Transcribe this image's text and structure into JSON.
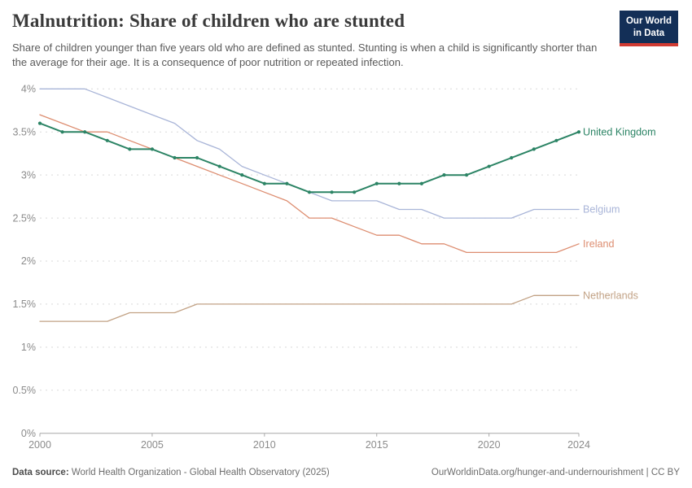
{
  "header": {
    "title": "Malnutrition: Share of children who are stunted",
    "subtitle": "Share of children younger than five years old who are defined as stunted. Stunting is when a child is significantly shorter than the average for their age. It is a consequence of poor nutrition or repeated infection.",
    "logo": {
      "line1": "Our World",
      "line2": "in Data",
      "bg_color": "#132f57",
      "accent_color": "#d13b33"
    }
  },
  "chart_data": {
    "type": "line",
    "title": "Malnutrition: Share of children who are stunted",
    "unit": "%",
    "x": [
      2000,
      2001,
      2002,
      2003,
      2004,
      2005,
      2006,
      2007,
      2008,
      2009,
      2010,
      2011,
      2012,
      2013,
      2014,
      2015,
      2016,
      2017,
      2018,
      2019,
      2020,
      2021,
      2022,
      2023,
      2024
    ],
    "series": [
      {
        "name": "Belgium",
        "color": "#a9b5d8",
        "line_width": 1.3,
        "markers": false,
        "values": [
          4.0,
          4.0,
          4.0,
          3.9,
          3.8,
          3.7,
          3.6,
          3.4,
          3.3,
          3.1,
          3.0,
          2.9,
          2.8,
          2.7,
          2.7,
          2.7,
          2.6,
          2.6,
          2.5,
          2.5,
          2.5,
          2.5,
          2.6,
          2.6,
          2.6
        ]
      },
      {
        "name": "Ireland",
        "color": "#dd8d70",
        "line_width": 1.3,
        "markers": false,
        "values": [
          3.7,
          3.6,
          3.5,
          3.5,
          3.4,
          3.3,
          3.2,
          3.1,
          3.0,
          2.9,
          2.8,
          2.7,
          2.5,
          2.5,
          2.4,
          2.3,
          2.3,
          2.2,
          2.2,
          2.1,
          2.1,
          2.1,
          2.1,
          2.1,
          2.2
        ]
      },
      {
        "name": "Netherlands",
        "color": "#c2a285",
        "line_width": 1.3,
        "markers": false,
        "values": [
          1.3,
          1.3,
          1.3,
          1.3,
          1.4,
          1.4,
          1.4,
          1.5,
          1.5,
          1.5,
          1.5,
          1.5,
          1.5,
          1.5,
          1.5,
          1.5,
          1.5,
          1.5,
          1.5,
          1.5,
          1.5,
          1.5,
          1.6,
          1.6,
          1.6
        ]
      },
      {
        "name": "United Kingdom",
        "color": "#2c8465",
        "line_width": 2.0,
        "markers": true,
        "values": [
          3.6,
          3.5,
          3.5,
          3.4,
          3.3,
          3.3,
          3.2,
          3.2,
          3.1,
          3.0,
          2.9,
          2.9,
          2.8,
          2.8,
          2.8,
          2.9,
          2.9,
          2.9,
          3.0,
          3.0,
          3.1,
          3.2,
          3.3,
          3.4,
          3.5
        ]
      }
    ],
    "ylim": [
      0,
      4
    ],
    "yticks": [
      {
        "value": 0,
        "label": "0%"
      },
      {
        "value": 0.5,
        "label": "0.5%"
      },
      {
        "value": 1,
        "label": "1%"
      },
      {
        "value": 1.5,
        "label": "1.5%"
      },
      {
        "value": 2,
        "label": "2%"
      },
      {
        "value": 2.5,
        "label": "2.5%"
      },
      {
        "value": 3,
        "label": "3%"
      },
      {
        "value": 3.5,
        "label": "3.5%"
      },
      {
        "value": 4,
        "label": "4%"
      }
    ],
    "xticks": [
      {
        "value": 2000,
        "label": "2000"
      },
      {
        "value": 2005,
        "label": "2005"
      },
      {
        "value": 2010,
        "label": "2010"
      },
      {
        "value": 2015,
        "label": "2015"
      },
      {
        "value": 2020,
        "label": "2020"
      },
      {
        "value": 2024,
        "label": "2024"
      }
    ],
    "grid": "horizontal-dashed",
    "legend": "end-of-line-labels",
    "colors": {
      "grid_line": "#d9d9d9",
      "axis_line": "#a8a8a8",
      "tick_label": "#8b8b8b"
    }
  },
  "footer": {
    "source_label": "Data source:",
    "source_value": " World Health Organization - Global Health Observatory (2025)",
    "attribution": "OurWorldinData.org/hunger-and-undernourishment | CC BY"
  }
}
